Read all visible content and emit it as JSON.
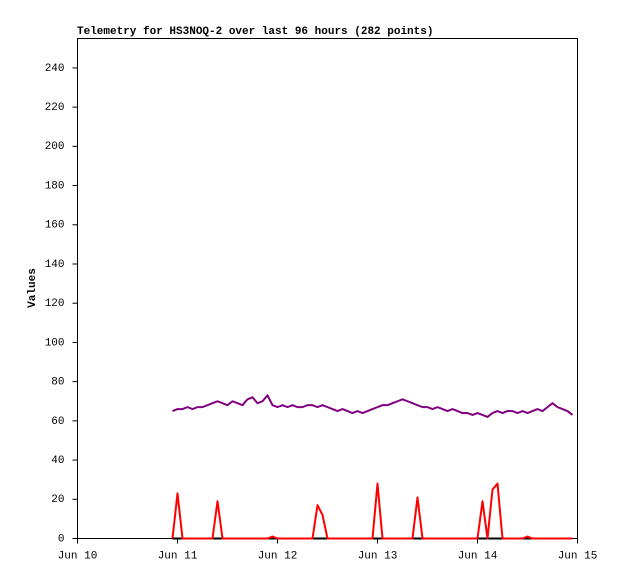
{
  "chart_data": {
    "type": "line",
    "title": "Telemetry for HS3NOQ-2 over last 96 hours (282 points)",
    "y_label": "Values",
    "x": [
      10.95,
      11,
      11.05,
      11.1,
      11.15,
      11.2,
      11.25,
      11.3,
      11.35,
      11.4,
      11.45,
      11.5,
      11.55,
      11.6,
      11.65,
      11.7,
      11.75,
      11.8,
      11.85,
      11.9,
      11.95,
      12,
      12.05,
      12.1,
      12.15,
      12.2,
      12.25,
      12.3,
      12.35,
      12.4,
      12.45,
      12.5,
      12.55,
      12.6,
      12.65,
      12.7,
      12.75,
      12.8,
      12.85,
      12.9,
      12.95,
      13,
      13.05,
      13.1,
      13.15,
      13.2,
      13.25,
      13.3,
      13.35,
      13.4,
      13.45,
      13.5,
      13.55,
      13.6,
      13.65,
      13.7,
      13.75,
      13.8,
      13.85,
      13.9,
      13.95,
      14,
      14.05,
      14.1,
      14.15,
      14.2,
      14.25,
      14.3,
      14.35,
      14.4,
      14.45,
      14.5,
      14.55,
      14.6,
      14.65,
      14.7,
      14.75,
      14.8,
      14.85,
      14.9,
      14.95
    ],
    "series": [
      {
        "color": "#000000",
        "values": [
          0,
          0,
          0,
          0,
          0,
          0,
          0,
          0,
          0,
          0,
          0,
          0,
          0,
          0,
          0,
          0,
          0,
          0,
          0,
          0,
          0,
          0,
          0,
          0,
          0,
          0,
          0,
          0,
          0,
          0,
          0,
          0,
          0,
          0,
          0,
          0,
          0,
          0,
          0,
          0,
          0,
          0,
          0,
          0,
          0,
          0,
          0,
          0,
          0,
          0,
          0,
          0,
          0,
          0,
          0,
          0,
          0,
          0,
          0,
          0,
          0,
          0,
          0,
          0,
          0,
          0,
          0,
          0,
          0,
          0,
          0,
          0,
          0,
          0,
          0,
          0,
          0,
          0,
          0,
          0,
          0
        ]
      },
      {
        "color": "#ff0000",
        "values": [
          0,
          23,
          0,
          0,
          0,
          0,
          0,
          0,
          0,
          19,
          0,
          0,
          0,
          0,
          0,
          0,
          0,
          0,
          0,
          0,
          1,
          0,
          0,
          0,
          0,
          0,
          0,
          0,
          0,
          17,
          12,
          0,
          0,
          0,
          0,
          0,
          0,
          0,
          0,
          0,
          0,
          28,
          0,
          0,
          0,
          0,
          0,
          0,
          0,
          21,
          0,
          0,
          0,
          0,
          0,
          0,
          0,
          0,
          0,
          0,
          0,
          0,
          19,
          0,
          25,
          28,
          0,
          0,
          0,
          0,
          0,
          1,
          0,
          0,
          0,
          0,
          0,
          0,
          0,
          0,
          0
        ]
      },
      {
        "color": "#800080",
        "values": [
          65,
          66,
          66,
          67,
          66,
          67,
          67,
          68,
          69,
          70,
          69,
          68,
          70,
          69,
          68,
          71,
          72,
          69,
          70,
          73,
          68,
          67,
          68,
          67,
          68,
          67,
          67,
          68,
          68,
          67,
          68,
          67,
          66,
          65,
          66,
          65,
          64,
          65,
          64,
          65,
          66,
          67,
          68,
          68,
          69,
          70,
          71,
          70,
          69,
          68,
          67,
          67,
          66,
          67,
          66,
          65,
          66,
          65,
          64,
          64,
          63,
          64,
          63,
          62,
          64,
          65,
          64,
          65,
          65,
          64,
          65,
          64,
          65,
          66,
          65,
          67,
          69,
          67,
          66,
          65,
          63
        ]
      }
    ],
    "xlim": [
      10,
      15
    ],
    "xticks": [
      {
        "value": 10,
        "label": "Jun 10"
      },
      {
        "value": 11,
        "label": "Jun 11"
      },
      {
        "value": 12,
        "label": "Jun 12"
      },
      {
        "value": 13,
        "label": "Jun 13"
      },
      {
        "value": 14,
        "label": "Jun 14"
      },
      {
        "value": 15,
        "label": "Jun 15"
      }
    ],
    "ylim": [
      0,
      255
    ],
    "yticks": [
      0,
      20,
      40,
      60,
      80,
      100,
      120,
      140,
      160,
      180,
      200,
      220,
      240
    ],
    "grid": false
  }
}
